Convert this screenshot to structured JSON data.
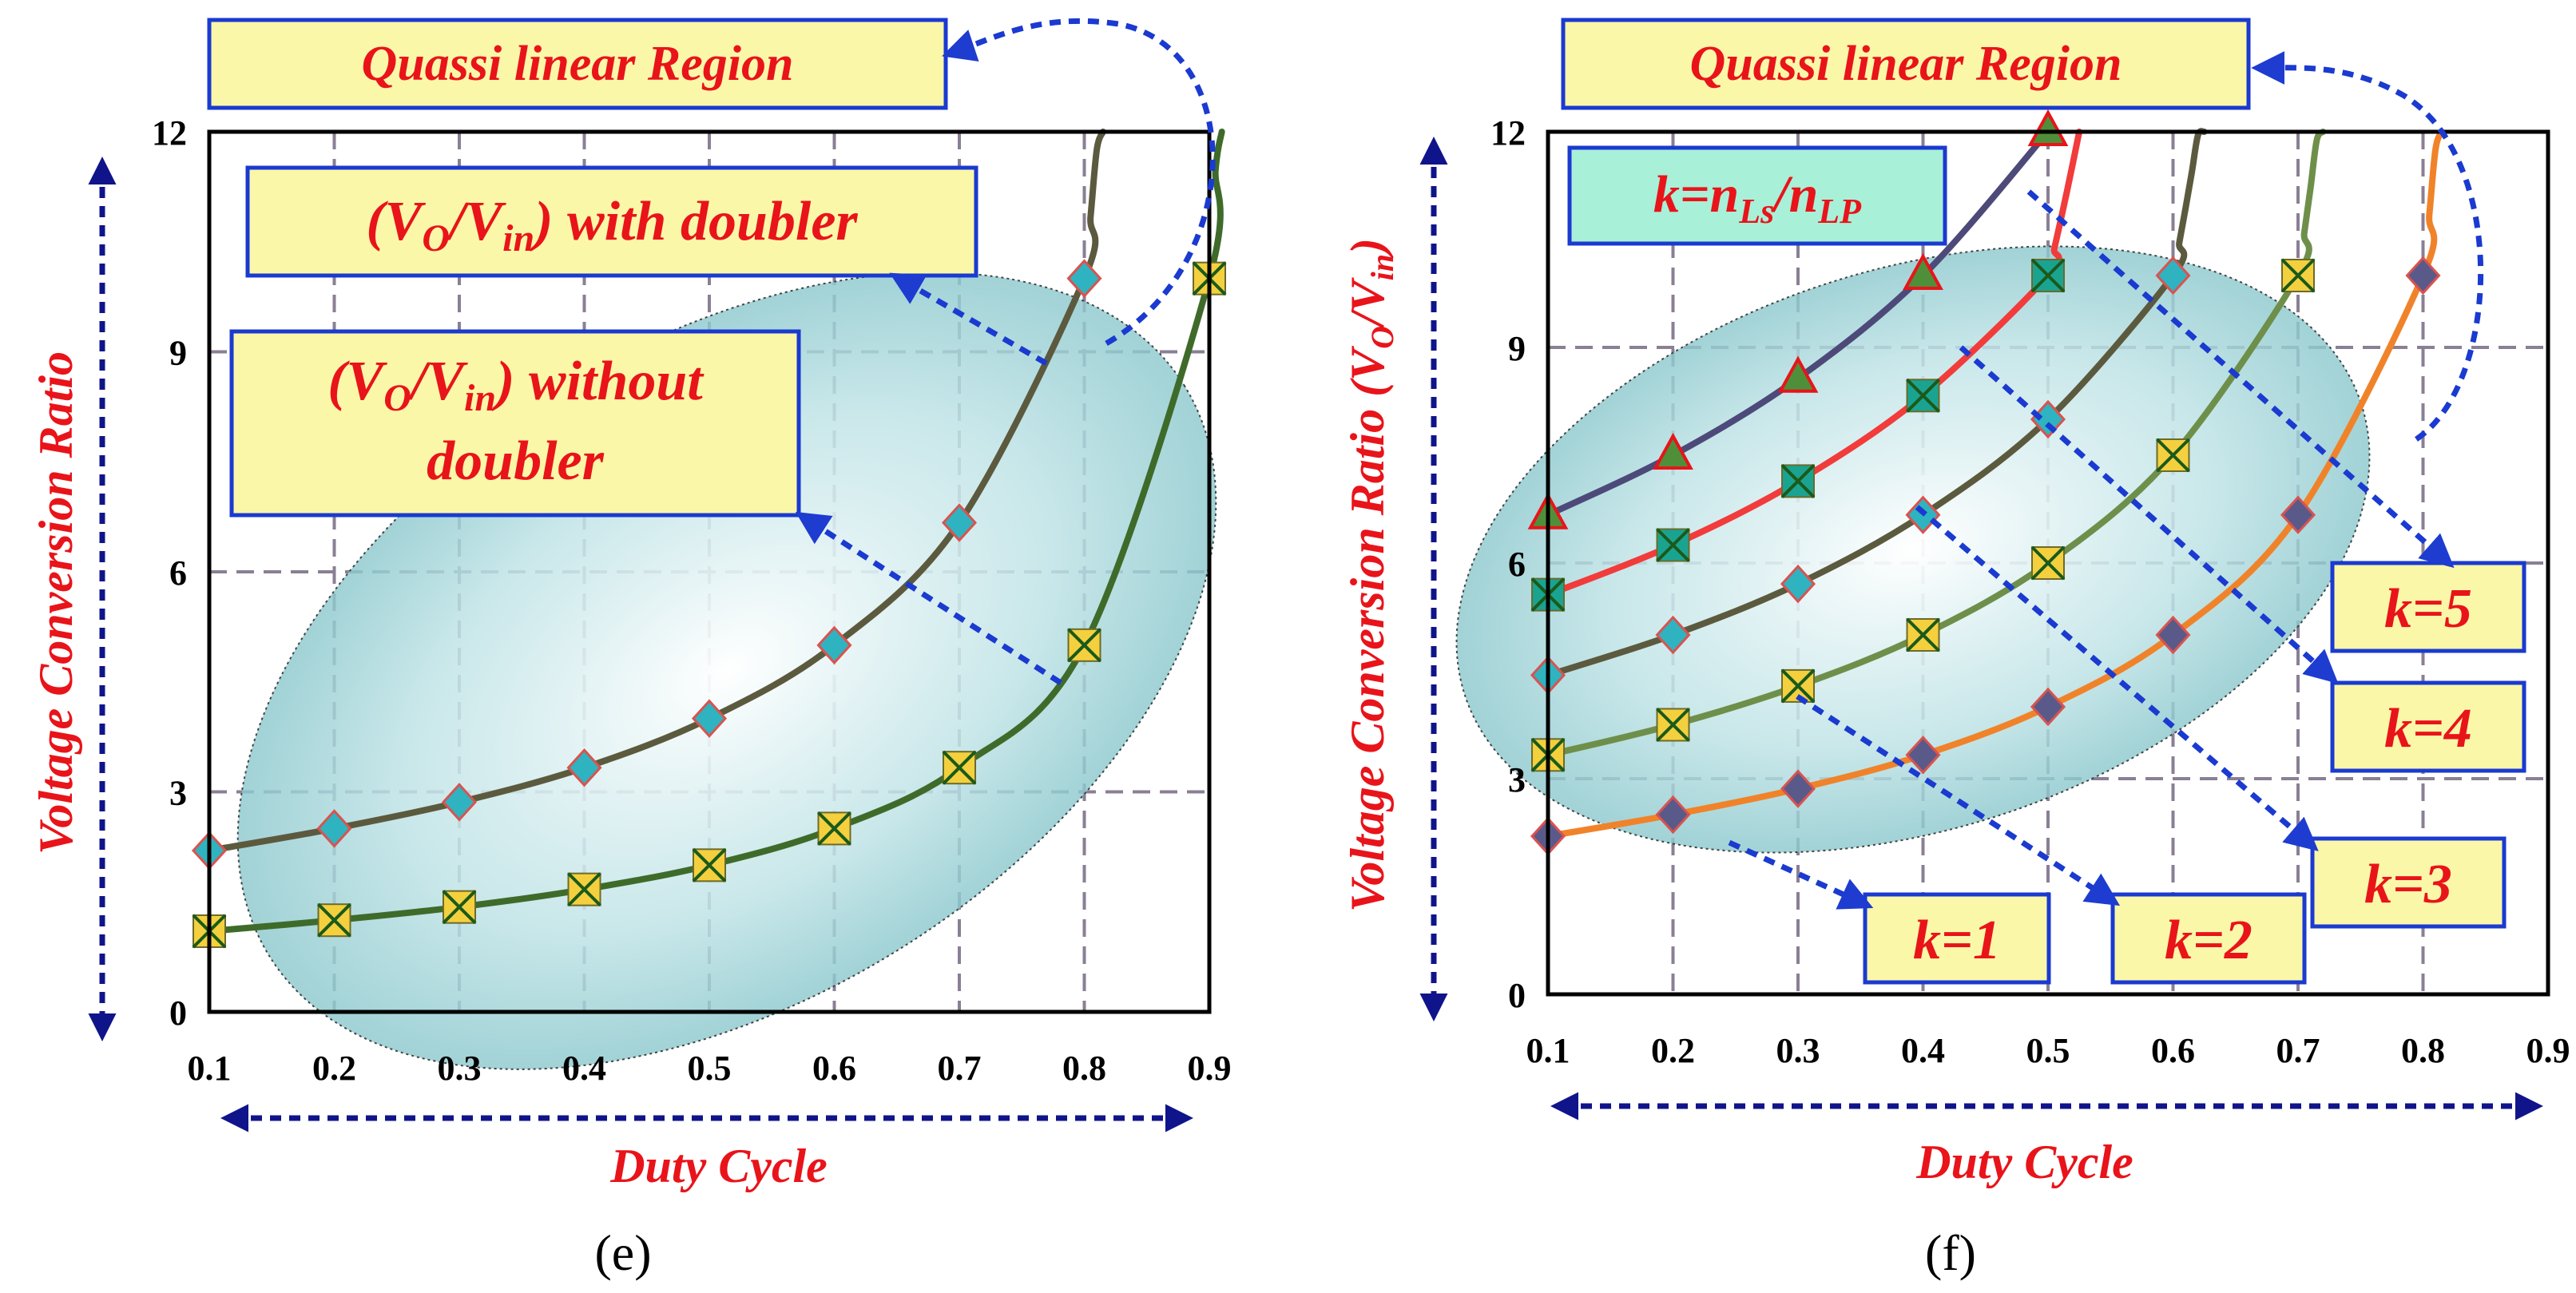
{
  "chart_data": [
    {
      "panel": "e",
      "type": "line",
      "caption": "(e)",
      "xlabel": "Duty Cycle",
      "ylabel": "Voltage Conversion Ratio",
      "xlim": [
        0.1,
        0.9
      ],
      "ylim": [
        0,
        12
      ],
      "x_ticks": [
        "0.1",
        "0.2",
        "0.3",
        "0.4",
        "0.5",
        "0.6",
        "0.7",
        "0.8",
        "0.9"
      ],
      "y_ticks": [
        "0",
        "3",
        "6",
        "9",
        "12"
      ],
      "grid": true,
      "series": [
        {
          "name": "(VO/Vin) with doubler",
          "color": "#5c5a3e",
          "marker": "diamond",
          "marker_color": "#2fb3c0",
          "x": [
            0.1,
            0.2,
            0.3,
            0.4,
            0.5,
            0.6,
            0.7,
            0.8
          ],
          "y": [
            2.2,
            2.5,
            2.86,
            3.33,
            4.0,
            5.0,
            6.67,
            10.0
          ]
        },
        {
          "name": "(VO/Vin) without doubler",
          "color": "#3f6b2a",
          "marker": "x-square",
          "marker_color": "#f4d03f",
          "x": [
            0.1,
            0.2,
            0.3,
            0.4,
            0.5,
            0.6,
            0.7,
            0.8,
            0.9
          ],
          "y": [
            1.1,
            1.25,
            1.43,
            1.67,
            2.0,
            2.5,
            3.33,
            5.0,
            10.0
          ]
        }
      ],
      "annotations": {
        "region": "Quassi linear Region",
        "with_doubler": [
          "(V",
          "O",
          "/V",
          "in",
          ") with doubler"
        ],
        "without_doubler_line1": [
          "(V",
          "O",
          "/V",
          "in",
          ") without"
        ],
        "without_doubler_line2": "doubler"
      }
    },
    {
      "panel": "f",
      "type": "line",
      "caption": "(f)",
      "xlabel": "Duty Cycle",
      "ylabel": [
        "Voltage Conversion Ratio (V",
        "O",
        "/V",
        "in",
        ")"
      ],
      "xlim": [
        0.1,
        0.9
      ],
      "ylim": [
        0,
        12
      ],
      "x_ticks": [
        "0.1",
        "0.2",
        "0.3",
        "0.4",
        "0.5",
        "0.6",
        "0.7",
        "0.8",
        "0.9"
      ],
      "y_ticks": [
        "0",
        "3",
        "6",
        "9",
        "12"
      ],
      "grid": true,
      "series": [
        {
          "name": "k=1",
          "color": "#f0832a",
          "marker": "diamond",
          "marker_color": "#5a5a8a",
          "x": [
            0.1,
            0.2,
            0.3,
            0.4,
            0.5,
            0.6,
            0.7,
            0.8
          ],
          "y": [
            2.2,
            2.5,
            2.86,
            3.33,
            4.0,
            5.0,
            6.67,
            10.0
          ]
        },
        {
          "name": "k=2",
          "color": "#6e8f4a",
          "marker": "x-square",
          "marker_color": "#f4d03f",
          "x": [
            0.1,
            0.2,
            0.3,
            0.4,
            0.5,
            0.6,
            0.7
          ],
          "y": [
            3.33,
            3.75,
            4.29,
            5.0,
            6.0,
            7.5,
            10.0
          ]
        },
        {
          "name": "k=3",
          "color": "#5c5a3e",
          "marker": "diamond",
          "marker_color": "#2fb3c0",
          "x": [
            0.1,
            0.2,
            0.3,
            0.4,
            0.5,
            0.6
          ],
          "y": [
            4.44,
            5.0,
            5.71,
            6.67,
            8.0,
            10.0
          ]
        },
        {
          "name": "k=4",
          "color": "#f23b3b",
          "marker": "x-square",
          "marker_color": "#1aa391",
          "x": [
            0.1,
            0.2,
            0.3,
            0.4,
            0.5
          ],
          "y": [
            5.56,
            6.25,
            7.14,
            8.33,
            10.0
          ]
        },
        {
          "name": "k=5",
          "color": "#4d4a7a",
          "marker": "triangle",
          "marker_color": "#4f8f3a",
          "x": [
            0.1,
            0.2,
            0.3,
            0.4,
            0.5
          ],
          "y": [
            6.67,
            7.5,
            8.57,
            10.0,
            12.0
          ]
        }
      ],
      "annotations": {
        "region": "Quassi linear Region",
        "k_def": [
          "k=n",
          "Ls",
          "/n",
          "LP"
        ],
        "k_labels": [
          "k=1",
          "k=2",
          "k=3",
          "k=4",
          "k=5"
        ]
      }
    }
  ]
}
